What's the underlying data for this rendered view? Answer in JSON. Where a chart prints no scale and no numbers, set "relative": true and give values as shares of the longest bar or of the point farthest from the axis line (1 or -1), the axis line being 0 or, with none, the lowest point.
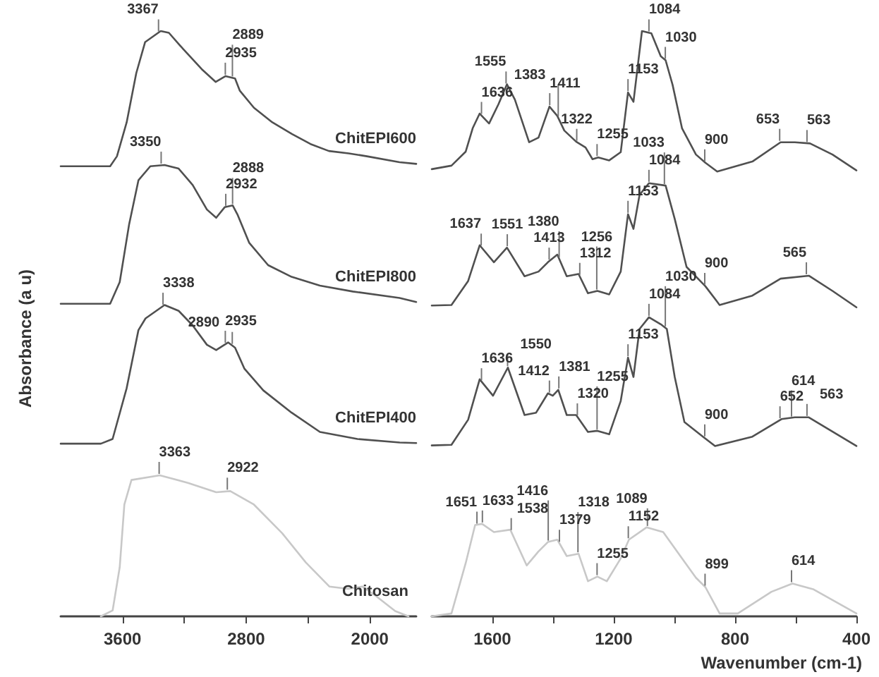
{
  "chart_data": [
    {
      "type": "line",
      "relative": true,
      "ylabel": "Absorbance (a u)",
      "xlim": [
        4000,
        1700
      ],
      "xticks": [
        3600,
        {
          "value": 3200,
          "label": null
        },
        2800,
        {
          "value": 2400,
          "label": null
        },
        2000
      ],
      "grid": false,
      "legend": false,
      "marker": "none",
      "line_style": "solid",
      "tick_labels": "x",
      "series": [
        {
          "name": "ChitEPI600",
          "color": "#505050",
          "x": [
            4000,
            3700,
            3680,
            3636,
            3573,
            3511,
            3454,
            3353,
            3300,
            3207,
            3088,
            2997,
            2933,
            2872,
            2841,
            2750,
            2631,
            2503,
            2384,
            2265,
            2137,
            2019,
            1808,
            1700
          ],
          "values": [
            0.769,
            0.769,
            0.769,
            0.786,
            0.844,
            0.928,
            0.981,
            1,
            0.997,
            0.969,
            0.935,
            0.913,
            0.923,
            0.919,
            0.898,
            0.869,
            0.844,
            0.824,
            0.807,
            0.795,
            0.791,
            0.786,
            0.776,
            0.773
          ]
        },
        {
          "name": "ChitEPI800",
          "color": "#505050",
          "x": [
            4000,
            3680,
            3618,
            3557,
            3497,
            3420,
            3328,
            3237,
            3146,
            3054,
            2994,
            2939,
            2887,
            2857,
            2780,
            2658,
            2506,
            2323,
            2110,
            1808,
            1700
          ],
          "values": [
            0.534,
            0.534,
            0.571,
            0.67,
            0.745,
            0.769,
            0.771,
            0.765,
            0.737,
            0.695,
            0.681,
            0.699,
            0.702,
            0.687,
            0.638,
            0.6,
            0.58,
            0.565,
            0.555,
            0.544,
            0.537
          ]
        },
        {
          "name": "ChitEPI400",
          "color": "#505050",
          "x": [
            4000,
            3740,
            3664,
            3573,
            3497,
            3451,
            3328,
            3237,
            3146,
            3054,
            2994,
            2917,
            2872,
            2811,
            2689,
            2506,
            2323,
            2080,
            1806,
            1700
          ],
          "values": [
            0.295,
            0.295,
            0.303,
            0.39,
            0.489,
            0.509,
            0.532,
            0.522,
            0.497,
            0.464,
            0.455,
            0.468,
            0.459,
            0.423,
            0.386,
            0.348,
            0.315,
            0.303,
            0.297,
            0.296
          ]
        },
        {
          "name": "Chitosan",
          "color": "#c8c8c8",
          "x": [
            3740,
            3664,
            3618,
            3588,
            3542,
            3359,
            3177,
            2994,
            2903,
            2750,
            2567,
            2414,
            2262,
            2140,
            2049,
            1957,
            1836,
            1750
          ],
          "values": [
            0,
            0.01,
            0.084,
            0.191,
            0.233,
            0.241,
            0.228,
            0.212,
            0.214,
            0.191,
            0.142,
            0.092,
            0.051,
            0.047,
            0.051,
            0.034,
            0.009,
            0
          ]
        }
      ],
      "annotations": [
        {
          "text": "2935",
          "x": 2935,
          "y": 0.923
        },
        {
          "text": "3367",
          "x": 3367,
          "y": 0.997
        },
        {
          "text": "2889",
          "x": 2889,
          "y": 0.92
        },
        {
          "text": "3350",
          "x": 3350,
          "y": 0.771
        },
        {
          "text": "2888",
          "x": 2888,
          "y": 0.702
        },
        {
          "text": "2932",
          "x": 2932,
          "y": 0.699
        },
        {
          "text": "3338",
          "x": 3338,
          "y": 0.53
        },
        {
          "text": "2935",
          "x": 2935,
          "y": 0.465
        },
        {
          "text": "2890",
          "x": 2890,
          "y": 0.463
        },
        {
          "text": "3363",
          "x": 3363,
          "y": 0.241
        },
        {
          "text": "2922",
          "x": 2922,
          "y": 0.214
        }
      ]
    },
    {
      "type": "line",
      "relative": true,
      "xlabel": "Wavenumber (cm-1)",
      "xlim": [
        1800,
        400
      ],
      "xticks": [
        1600,
        {
          "value": 1400,
          "label": null
        },
        1200,
        {
          "value": 1000,
          "label": null
        },
        800,
        {
          "value": 600,
          "label": null
        },
        400
      ],
      "grid": false,
      "legend": false,
      "marker": "none",
      "line_style": "solid",
      "tick_labels": "x",
      "series": [
        {
          "color": "#505050",
          "x": [
            1800,
            1735,
            1688,
            1665,
            1642,
            1611,
            1580,
            1552,
            1526,
            1479,
            1448,
            1412,
            1386,
            1363,
            1324,
            1293,
            1270,
            1251,
            1215,
            1177,
            1153,
            1135,
            1107,
            1076,
            1045,
            1029,
            1006,
            975,
            929,
            898,
            859,
            743,
            650,
            603,
            553,
            479,
            400
          ],
          "values": [
            0.764,
            0.77,
            0.794,
            0.834,
            0.859,
            0.842,
            0.875,
            0.909,
            0.883,
            0.81,
            0.818,
            0.871,
            0.855,
            0.83,
            0.811,
            0.801,
            0.781,
            0.784,
            0.779,
            0.793,
            0.895,
            0.879,
            1,
            0.996,
            0.957,
            0.95,
            0.908,
            0.834,
            0.789,
            0.775,
            0.76,
            0.777,
            0.81,
            0.81,
            0.808,
            0.789,
            0.762
          ]
        },
        {
          "color": "#505050",
          "x": [
            1800,
            1735,
            1680,
            1642,
            1595,
            1552,
            1494,
            1448,
            1417,
            1386,
            1355,
            1316,
            1285,
            1254,
            1215,
            1177,
            1153,
            1135,
            1115,
            1084,
            1029,
            999,
            960,
            898,
            851,
            743,
            650,
            557,
            479,
            400
          ],
          "values": [
            0.531,
            0.532,
            0.573,
            0.634,
            0.605,
            0.63,
            0.581,
            0.589,
            0.605,
            0.618,
            0.581,
            0.585,
            0.552,
            0.556,
            0.55,
            0.589,
            0.687,
            0.662,
            0.72,
            0.74,
            0.736,
            0.679,
            0.597,
            0.564,
            0.532,
            0.548,
            0.577,
            0.582,
            0.556,
            0.528
          ]
        },
        {
          "color": "#505050",
          "x": [
            1800,
            1735,
            1680,
            1642,
            1598,
            1549,
            1494,
            1456,
            1417,
            1401,
            1383,
            1355,
            1324,
            1285,
            1254,
            1215,
            1177,
            1153,
            1135,
            1115,
            1084,
            1045,
            1025,
            999,
            967,
            906,
            866,
            743,
            647,
            603,
            557,
            400
          ],
          "values": [
            0.292,
            0.293,
            0.336,
            0.405,
            0.377,
            0.425,
            0.344,
            0.348,
            0.381,
            0.377,
            0.387,
            0.344,
            0.344,
            0.315,
            0.317,
            0.311,
            0.368,
            0.442,
            0.409,
            0.491,
            0.511,
            0.499,
            0.491,
            0.409,
            0.332,
            0.307,
            0.291,
            0.307,
            0.337,
            0.34,
            0.34,
            0.291
          ]
        },
        {
          "color": "#c8c8c8",
          "x": [
            1800,
            1735,
            1688,
            1657,
            1634,
            1595,
            1541,
            1487,
            1448,
            1417,
            1386,
            1355,
            1316,
            1285,
            1254,
            1223,
            1177,
            1150,
            1092,
            1037,
            975,
            929,
            898,
            851,
            805,
            791,
            680,
            611,
            541,
            400
          ],
          "values": [
            0,
            0.005,
            0.091,
            0.156,
            0.158,
            0.144,
            0.148,
            0.087,
            0.111,
            0.127,
            0.131,
            0.103,
            0.107,
            0.06,
            0.068,
            0.06,
            0.099,
            0.131,
            0.152,
            0.144,
            0.099,
            0.066,
            0.05,
            0.005,
            0.005,
            0.005,
            0.042,
            0.056,
            0.046,
            0.005
          ]
        }
      ],
      "annotations": [
        {
          "text": "1636",
          "x": 1636,
          "y": 0.856
        },
        {
          "text": "1555",
          "x": 1555,
          "y": 0.908
        },
        {
          "text": "1411",
          "x": 1411,
          "y": 0.871
        },
        {
          "text": "1383",
          "x": 1383,
          "y": 0.852
        },
        {
          "text": "1322",
          "x": 1322,
          "y": 0.81
        },
        {
          "text": "1153",
          "x": 1153,
          "y": 0.895
        },
        {
          "text": "1255",
          "x": 1255,
          "y": 0.784
        },
        {
          "text": "1084",
          "x": 1084,
          "y": 0.997
        },
        {
          "text": "1030",
          "x": 1030,
          "y": 0.95
        },
        {
          "text": "900",
          "x": 900,
          "y": 0.775
        },
        {
          "text": "653",
          "x": 653,
          "y": 0.81
        },
        {
          "text": "563",
          "x": 563,
          "y": 0.808
        },
        {
          "text": "1084",
          "x": 1084,
          "y": 0.74
        },
        {
          "text": "1153",
          "x": 1153,
          "y": 0.687
        },
        {
          "text": "1033",
          "x": 1033,
          "y": 0.736
        },
        {
          "text": "1637",
          "x": 1637,
          "y": 0.631
        },
        {
          "text": "1380",
          "x": 1380,
          "y": 0.611
        },
        {
          "text": "1551",
          "x": 1551,
          "y": 0.63
        },
        {
          "text": "1413",
          "x": 1413,
          "y": 0.607
        },
        {
          "text": "1312",
          "x": 1312,
          "y": 0.581
        },
        {
          "text": "1256",
          "x": 1256,
          "y": 0.556
        },
        {
          "text": "900",
          "x": 900,
          "y": 0.564
        },
        {
          "text": "565",
          "x": 565,
          "y": 0.582
        },
        {
          "text": "1084",
          "x": 1084,
          "y": 0.511
        },
        {
          "text": "1030",
          "x": 1030,
          "y": 0.493
        },
        {
          "text": "1153",
          "x": 1153,
          "y": 0.442
        },
        {
          "text": "1550",
          "x": 1550,
          "y": 0.425
        },
        {
          "text": "1636",
          "x": 1636,
          "y": 0.401
        },
        {
          "text": "1381",
          "x": 1381,
          "y": 0.387
        },
        {
          "text": "1412",
          "x": 1412,
          "y": 0.38
        },
        {
          "text": "1320",
          "x": 1320,
          "y": 0.341
        },
        {
          "text": "1255",
          "x": 1255,
          "y": 0.317
        },
        {
          "text": "900",
          "x": 900,
          "y": 0.305
        },
        {
          "text": "652",
          "x": 652,
          "y": 0.336
        },
        {
          "text": "614",
          "x": 614,
          "y": 0.339
        },
        {
          "text": "563",
          "x": 563,
          "y": 0.34
        },
        {
          "text": "1651",
          "x": 1651,
          "y": 0.156
        },
        {
          "text": "1633",
          "x": 1633,
          "y": 0.158
        },
        {
          "text": "1538",
          "x": 1538,
          "y": 0.145
        },
        {
          "text": "1416",
          "x": 1416,
          "y": 0.127
        },
        {
          "text": "1379",
          "x": 1379,
          "y": 0.125
        },
        {
          "text": "1318",
          "x": 1318,
          "y": 0.107
        },
        {
          "text": "1255",
          "x": 1255,
          "y": 0.068
        },
        {
          "text": "1152",
          "x": 1152,
          "y": 0.131
        },
        {
          "text": "1089",
          "x": 1089,
          "y": 0.152
        },
        {
          "text": "899",
          "x": 899,
          "y": 0.05
        },
        {
          "text": "614",
          "x": 614,
          "y": 0.056
        }
      ]
    }
  ]
}
